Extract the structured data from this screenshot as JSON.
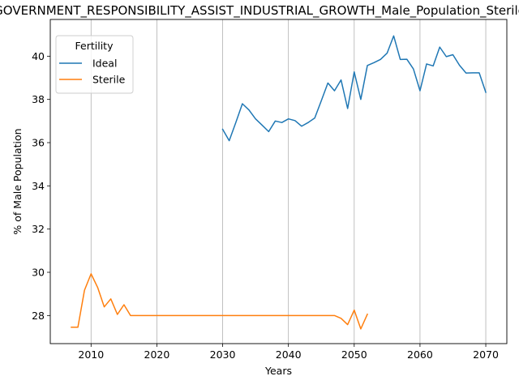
{
  "chart_data": {
    "type": "line",
    "title": "GOVERNMENT_RESPONSIBILITY_ASSIST_INDUSTRIAL_GROWTH_Male_Population_Sterile",
    "xlabel": "Years",
    "ylabel": "% of Male Population",
    "xlim": [
      2003.8,
      2073.2
    ],
    "ylim": [
      26.7,
      41.7
    ],
    "xticks": [
      2010,
      2020,
      2030,
      2040,
      2050,
      2060,
      2070
    ],
    "yticks": [
      28,
      30,
      32,
      34,
      36,
      38,
      40
    ],
    "grid": "x-only",
    "legend": {
      "title": "Fertility",
      "placement": "top-left"
    },
    "series": [
      {
        "name": "Ideal",
        "color": "#1f77b4",
        "x": [
          2030,
          2031,
          2032,
          2033,
          2034,
          2035,
          2036,
          2037,
          2038,
          2039,
          2040,
          2041,
          2042,
          2043,
          2044,
          2045,
          2046,
          2047,
          2048,
          2049,
          2050,
          2051,
          2052,
          2053,
          2054,
          2055,
          2056,
          2057,
          2058,
          2059,
          2060,
          2061,
          2062,
          2063,
          2064,
          2065,
          2066,
          2067,
          2068,
          2069,
          2070
        ],
        "y": [
          36.62,
          36.09,
          36.93,
          37.8,
          37.51,
          37.1,
          36.81,
          36.51,
          37.0,
          36.93,
          37.1,
          37.02,
          36.76,
          36.93,
          37.14,
          37.94,
          38.76,
          38.4,
          38.9,
          37.58,
          39.27,
          38.0,
          39.57,
          39.7,
          39.85,
          40.14,
          40.94,
          39.85,
          39.86,
          39.41,
          38.4,
          39.64,
          39.55,
          40.42,
          39.98,
          40.07,
          39.58,
          39.22,
          39.23,
          39.23,
          38.33
        ]
      },
      {
        "name": "Sterile",
        "color": "#ff7f0e",
        "x": [
          2007,
          2008,
          2009,
          2010,
          2011,
          2012,
          2013,
          2014,
          2015,
          2016,
          2017,
          2018,
          2019,
          2020,
          2021,
          2022,
          2023,
          2024,
          2025,
          2026,
          2027,
          2028,
          2029,
          2030,
          2031,
          2032,
          2033,
          2034,
          2035,
          2036,
          2037,
          2038,
          2039,
          2040,
          2041,
          2042,
          2043,
          2044,
          2045,
          2046,
          2047,
          2048,
          2049,
          2050,
          2051,
          2052
        ],
        "y": [
          27.46,
          27.46,
          29.17,
          29.93,
          29.3,
          28.4,
          28.77,
          28.05,
          28.5,
          28.0,
          28.0,
          28.0,
          28.0,
          28.0,
          28.0,
          28.0,
          28.0,
          28.0,
          28.0,
          28.0,
          28.0,
          28.0,
          28.0,
          28.0,
          28.0,
          28.0,
          28.0,
          28.0,
          28.0,
          28.0,
          28.0,
          28.0,
          28.0,
          28.0,
          28.0,
          28.0,
          28.0,
          28.0,
          28.0,
          28.0,
          28.0,
          27.87,
          27.58,
          28.25,
          27.38,
          28.06
        ]
      }
    ]
  }
}
